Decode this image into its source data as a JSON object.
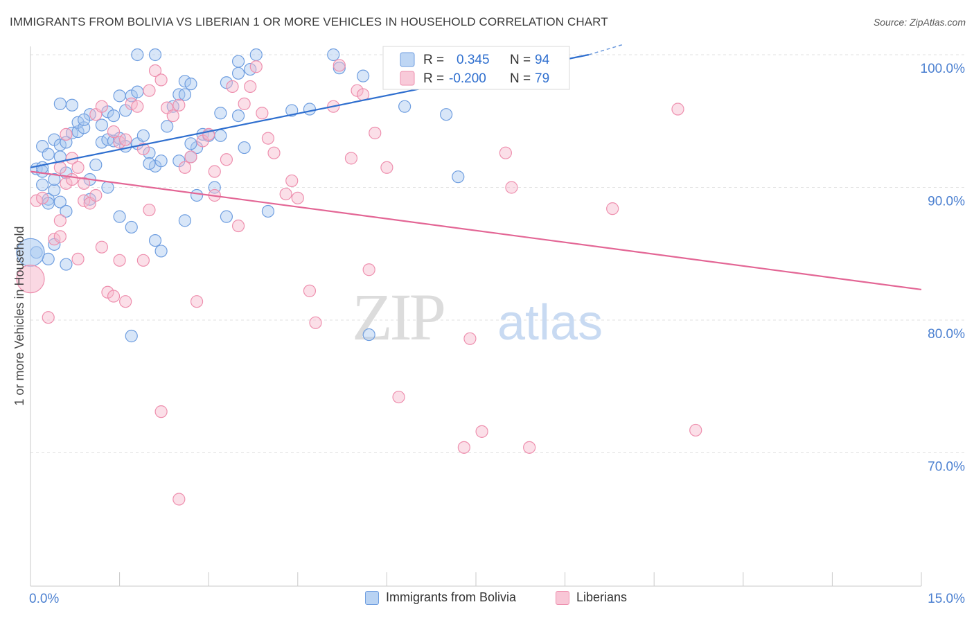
{
  "title": "IMMIGRANTS FROM BOLIVIA VS LIBERIAN 1 OR MORE VEHICLES IN HOUSEHOLD CORRELATION CHART",
  "source": "Source: ZipAtlas.com",
  "watermark": {
    "zip": "ZIP",
    "atlas": "atlas"
  },
  "colors": {
    "blue_fill": "#a8c8f0",
    "blue_stroke": "#6f9ee0",
    "blue_line": "#2f6fcf",
    "pink_fill": "#f6b8cc",
    "pink_stroke": "#ee8fae",
    "pink_line": "#e36695",
    "axis_text": "#4a7fd0",
    "grid": "#e2e2e2"
  },
  "stats_legend": [
    {
      "r_label": "R =",
      "r_value": "0.345",
      "n_label": "N =",
      "n_value": "94",
      "series": "blue"
    },
    {
      "r_label": "R =",
      "r_value": "-0.200",
      "n_label": "N =",
      "n_value": "79",
      "series": "pink"
    }
  ],
  "chart_data": {
    "type": "scatter",
    "title": "IMMIGRANTS FROM BOLIVIA VS LIBERIAN 1 OR MORE VEHICLES IN HOUSEHOLD CORRELATION CHART",
    "xlabel": "",
    "ylabel": "1 or more Vehicles in Household",
    "xlim": [
      0,
      15
    ],
    "ylim": [
      60.3,
      101.5
    ],
    "x_tick_labels": [
      {
        "value": 0,
        "label": "0.0%"
      },
      {
        "value": 15,
        "label": "15.0%"
      }
    ],
    "y_tick_labels": [
      {
        "value": 100,
        "label": "100.0%"
      },
      {
        "value": 90,
        "label": "90.0%"
      },
      {
        "value": 80,
        "label": "80.0%"
      },
      {
        "value": 70,
        "label": "70.0%"
      }
    ],
    "grid": true,
    "legend_position": "bottom",
    "series": [
      {
        "name": "Immigrants from Bolivia",
        "color": "blue",
        "trend": {
          "x": [
            0,
            9.4
          ],
          "y": [
            91.5,
            100.0
          ],
          "dashed_to": [
            10.0,
            100.8
          ]
        },
        "points": [
          [
            0.1,
            91.4
          ],
          [
            0.2,
            91.2
          ],
          [
            0.2,
            90.2
          ],
          [
            0.3,
            89.1
          ],
          [
            0.4,
            89.8
          ],
          [
            0.3,
            88.8
          ],
          [
            0.5,
            88.9
          ],
          [
            0.6,
            88.2
          ],
          [
            0.1,
            85.1
          ],
          [
            0.3,
            84.6
          ],
          [
            0.4,
            85.7
          ],
          [
            0.6,
            84.2
          ],
          [
            0.2,
            93.1
          ],
          [
            0.3,
            92.5
          ],
          [
            0.4,
            93.6
          ],
          [
            0.5,
            93.2
          ],
          [
            0.6,
            93.4
          ],
          [
            0.5,
            92.3
          ],
          [
            0.7,
            94.1
          ],
          [
            0.8,
            94.2
          ],
          [
            0.8,
            94.9
          ],
          [
            0.9,
            94.5
          ],
          [
            1.0,
            95.5
          ],
          [
            0.7,
            96.2
          ],
          [
            1.2,
            94.7
          ],
          [
            1.3,
            95.7
          ],
          [
            1.4,
            95.4
          ],
          [
            1.5,
            96.9
          ],
          [
            1.6,
            95.8
          ],
          [
            1.7,
            96.9
          ],
          [
            1.8,
            97.2
          ],
          [
            1.2,
            93.4
          ],
          [
            1.3,
            93.6
          ],
          [
            1.4,
            93.5
          ],
          [
            1.5,
            93.7
          ],
          [
            1.6,
            93.1
          ],
          [
            1.8,
            93.3
          ],
          [
            1.9,
            93.9
          ],
          [
            2.0,
            92.6
          ],
          [
            2.1,
            91.6
          ],
          [
            2.2,
            92.0
          ],
          [
            2.0,
            91.8
          ],
          [
            2.3,
            94.6
          ],
          [
            2.4,
            96.1
          ],
          [
            2.5,
            97.0
          ],
          [
            2.6,
            98.0
          ],
          [
            2.6,
            97.0
          ],
          [
            2.7,
            97.8
          ],
          [
            2.5,
            92.0
          ],
          [
            2.7,
            92.3
          ],
          [
            2.8,
            93.0
          ],
          [
            2.9,
            94.0
          ],
          [
            3.0,
            93.9
          ],
          [
            2.7,
            93.3
          ],
          [
            1.3,
            90.0
          ],
          [
            1.1,
            91.7
          ],
          [
            1.0,
            90.6
          ],
          [
            1.5,
            87.8
          ],
          [
            1.7,
            87.0
          ],
          [
            2.1,
            86.0
          ],
          [
            2.2,
            85.2
          ],
          [
            2.8,
            89.4
          ],
          [
            2.6,
            87.5
          ],
          [
            3.1,
            90.0
          ],
          [
            1.7,
            78.8
          ],
          [
            3.2,
            95.6
          ],
          [
            3.5,
            95.4
          ],
          [
            3.3,
            97.9
          ],
          [
            3.5,
            98.6
          ],
          [
            3.7,
            98.9
          ],
          [
            3.8,
            100.0
          ],
          [
            3.5,
            99.5
          ],
          [
            3.2,
            93.9
          ],
          [
            3.3,
            87.8
          ],
          [
            3.6,
            93.0
          ],
          [
            4.0,
            88.2
          ],
          [
            4.4,
            95.8
          ],
          [
            4.7,
            95.9
          ],
          [
            5.1,
            100.0
          ],
          [
            5.2,
            99.0
          ],
          [
            5.6,
            98.4
          ],
          [
            5.7,
            78.9
          ],
          [
            6.4,
            100.0
          ],
          [
            6.3,
            96.1
          ],
          [
            7.0,
            95.5
          ],
          [
            7.2,
            90.8
          ],
          [
            0.5,
            96.3
          ],
          [
            0.9,
            95.1
          ],
          [
            1.8,
            100.0
          ],
          [
            2.1,
            100.0
          ],
          [
            1.0,
            89.1
          ],
          [
            0.2,
            91.5
          ],
          [
            0.4,
            90.6
          ],
          [
            0.6,
            91.1
          ]
        ],
        "big_points": [
          [
            0.0,
            85.1
          ]
        ]
      },
      {
        "name": "Liberians",
        "color": "pink",
        "trend": {
          "x": [
            0,
            15
          ],
          "y": [
            91.2,
            82.3
          ]
        },
        "points": [
          [
            0.1,
            89.0
          ],
          [
            0.2,
            89.2
          ],
          [
            0.4,
            86.1
          ],
          [
            0.5,
            87.5
          ],
          [
            0.5,
            86.3
          ],
          [
            0.3,
            80.2
          ],
          [
            0.5,
            91.5
          ],
          [
            0.6,
            90.3
          ],
          [
            0.7,
            90.6
          ],
          [
            0.7,
            92.2
          ],
          [
            0.8,
            91.5
          ],
          [
            0.9,
            89.0
          ],
          [
            1.0,
            88.8
          ],
          [
            1.1,
            89.4
          ],
          [
            1.2,
            85.5
          ],
          [
            1.3,
            82.1
          ],
          [
            1.4,
            81.8
          ],
          [
            1.5,
            84.5
          ],
          [
            1.6,
            81.4
          ],
          [
            1.4,
            94.2
          ],
          [
            1.5,
            93.4
          ],
          [
            1.6,
            93.6
          ],
          [
            1.7,
            96.3
          ],
          [
            1.8,
            96.1
          ],
          [
            1.9,
            92.9
          ],
          [
            2.0,
            88.3
          ],
          [
            2.1,
            98.8
          ],
          [
            2.2,
            98.1
          ],
          [
            2.3,
            96.0
          ],
          [
            2.4,
            95.4
          ],
          [
            2.5,
            96.2
          ],
          [
            2.6,
            91.5
          ],
          [
            2.7,
            92.3
          ],
          [
            2.9,
            93.5
          ],
          [
            3.0,
            94.0
          ],
          [
            3.1,
            91.2
          ],
          [
            3.3,
            92.1
          ],
          [
            3.4,
            97.6
          ],
          [
            3.5,
            87.1
          ],
          [
            3.6,
            96.3
          ],
          [
            3.7,
            97.6
          ],
          [
            3.8,
            99.1
          ],
          [
            3.9,
            95.6
          ],
          [
            4.0,
            93.7
          ],
          [
            4.1,
            92.6
          ],
          [
            4.3,
            89.5
          ],
          [
            4.4,
            90.5
          ],
          [
            4.5,
            89.2
          ],
          [
            4.7,
            82.2
          ],
          [
            4.8,
            79.8
          ],
          [
            5.1,
            96.1
          ],
          [
            5.2,
            99.2
          ],
          [
            5.4,
            92.2
          ],
          [
            5.5,
            97.3
          ],
          [
            5.6,
            97.0
          ],
          [
            5.7,
            83.8
          ],
          [
            5.8,
            94.1
          ],
          [
            6.0,
            91.5
          ],
          [
            6.2,
            74.2
          ],
          [
            7.3,
            70.4
          ],
          [
            7.4,
            78.6
          ],
          [
            7.6,
            71.6
          ],
          [
            8.0,
            92.6
          ],
          [
            8.1,
            90.0
          ],
          [
            8.4,
            70.4
          ],
          [
            9.8,
            88.4
          ],
          [
            10.9,
            95.9
          ],
          [
            11.2,
            71.7
          ],
          [
            2.2,
            73.1
          ],
          [
            2.5,
            66.5
          ],
          [
            2.8,
            81.4
          ],
          [
            1.9,
            84.5
          ],
          [
            0.8,
            84.6
          ],
          [
            3.1,
            89.4
          ],
          [
            1.1,
            95.5
          ],
          [
            0.6,
            94.0
          ],
          [
            1.2,
            96.1
          ],
          [
            2.0,
            97.3
          ],
          [
            0.9,
            90.3
          ]
        ],
        "big_points": [
          [
            0.0,
            83.1
          ]
        ]
      }
    ]
  },
  "legend_bottom": [
    {
      "label": "Immigrants from Bolivia",
      "series": "blue"
    },
    {
      "label": "Liberians",
      "series": "pink"
    }
  ]
}
